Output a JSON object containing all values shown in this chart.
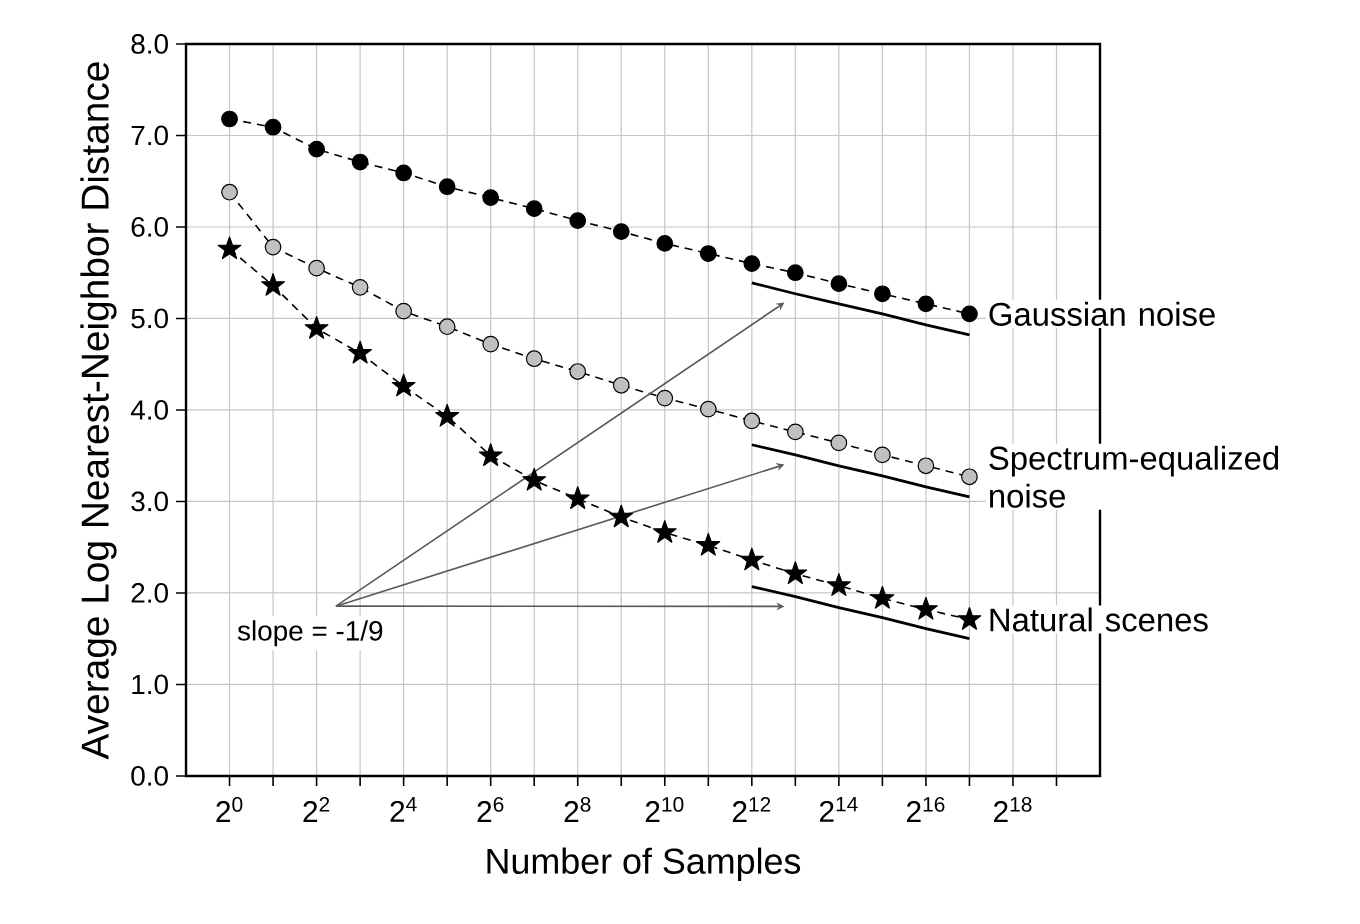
{
  "chart_data": {
    "type": "line",
    "xlabel": "Number of Samples",
    "ylabel": "Average Log Nearest-Neighbor Distance",
    "x": [
      1,
      2,
      4,
      8,
      16,
      32,
      64,
      128,
      256,
      512,
      1024,
      2048,
      4096,
      8192,
      16384,
      32768,
      65536,
      131072
    ],
    "series": [
      {
        "name": "Gaussian noise",
        "color": "#000000",
        "marker": "circle",
        "line_style": "dashed",
        "values": [
          7.18,
          7.09,
          6.85,
          6.71,
          6.59,
          6.44,
          6.32,
          6.2,
          6.07,
          5.95,
          5.82,
          5.71,
          5.6,
          5.5,
          5.38,
          5.27,
          5.16,
          5.05
        ]
      },
      {
        "name": "Spectrum-equalized noise",
        "color": "#c0c0c0",
        "marker": "circle",
        "line_style": "dashed",
        "values": [
          6.38,
          5.78,
          5.55,
          5.34,
          5.08,
          4.91,
          4.72,
          4.56,
          4.42,
          4.27,
          4.13,
          4.01,
          3.88,
          3.76,
          3.64,
          3.51,
          3.39,
          3.27
        ]
      },
      {
        "name": "Natural scenes",
        "color": "#000000",
        "marker": "star",
        "line_style": "dashed",
        "values": [
          5.76,
          5.36,
          4.89,
          4.62,
          4.26,
          3.93,
          3.5,
          3.23,
          3.03,
          2.83,
          2.66,
          2.52,
          2.36,
          2.21,
          2.08,
          1.94,
          1.82,
          1.71
        ]
      },
      {
        "type": "line",
        "color": "#000000",
        "marker": "none",
        "line_style": "solid",
        "values": [
          null,
          null,
          null,
          null,
          null,
          null,
          null,
          null,
          null,
          null,
          null,
          null,
          5.39,
          5.27,
          5.16,
          5.05,
          4.93,
          4.82
        ]
      },
      {
        "type": "line",
        "color": "#000000",
        "marker": "none",
        "line_style": "solid",
        "values": [
          null,
          null,
          null,
          null,
          null,
          null,
          null,
          null,
          null,
          null,
          null,
          null,
          3.62,
          3.51,
          3.39,
          3.28,
          3.16,
          3.05
        ]
      },
      {
        "type": "line",
        "color": "#000000",
        "marker": "none",
        "line_style": "solid",
        "values": [
          null,
          null,
          null,
          null,
          null,
          null,
          null,
          null,
          null,
          null,
          null,
          null,
          2.07,
          1.96,
          1.84,
          1.73,
          1.61,
          1.5
        ]
      }
    ],
    "log": "x",
    "xlim": [
      0.5,
      1048576
    ],
    "xticks": [
      {
        "value": 1,
        "label": "2$^{0}$"
      },
      {
        "value": 2,
        "label": null
      },
      {
        "value": 4,
        "label": "2$^{2}$"
      },
      {
        "value": 8,
        "label": null
      },
      {
        "value": 16,
        "label": "2$^{4}$"
      },
      {
        "value": 32,
        "label": null
      },
      {
        "value": 64,
        "label": "2$^{6}$"
      },
      {
        "value": 128,
        "label": null
      },
      {
        "value": 256,
        "label": "2$^{8}$"
      },
      {
        "value": 512,
        "label": null
      },
      {
        "value": 1024,
        "label": "2$^{10}$"
      },
      {
        "value": 2048,
        "label": null
      },
      {
        "value": 4096,
        "label": "2$^{12}$"
      },
      {
        "value": 8192,
        "label": null
      },
      {
        "value": 16384,
        "label": "2$^{14}$"
      },
      {
        "value": 32768,
        "label": null
      },
      {
        "value": 65536,
        "label": "2$^{16}$"
      },
      {
        "value": 131072,
        "label": null
      },
      {
        "value": 262144,
        "label": "2$^{18}$"
      },
      {
        "value": 524288,
        "label": null
      }
    ],
    "ylim": [
      0,
      8
    ],
    "yticks": [
      {
        "value": 0,
        "label": "0.0"
      },
      {
        "value": 1,
        "label": "1.0"
      },
      {
        "value": 2,
        "label": "2.0"
      },
      {
        "value": 3,
        "label": "3.0"
      },
      {
        "value": 4,
        "label": "4.0"
      },
      {
        "value": 5,
        "label": "5.0"
      },
      {
        "value": 6,
        "label": "6.0"
      },
      {
        "value": 7,
        "label": "7.0"
      },
      {
        "value": 8,
        "label": "8.0"
      }
    ],
    "grid": true,
    "annotations": [
      "slope = -1/9"
    ]
  }
}
